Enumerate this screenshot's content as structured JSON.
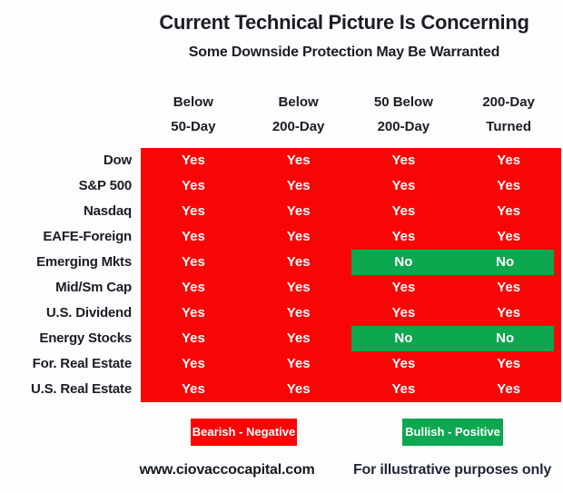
{
  "title": "Current Technical Picture Is Concerning",
  "subtitle": "Some Downside Protection May Be Warranted",
  "legend": {
    "bearish": "Bearish - Negative",
    "bullish": "Bullish - Positive"
  },
  "footer": {
    "website": "www.ciovaccocapital.com",
    "disclaimer": "For illustrative purposes only"
  },
  "colors": {
    "bearish_red": "#FA0505",
    "bullish_green": "#0DA750",
    "text_dark": "#1A1C26",
    "cell_text": "#FFFFFF"
  },
  "chart_data": {
    "type": "table",
    "title": "Current Technical Picture Is Concerning",
    "subtitle": "Some Downside Protection May Be Warranted",
    "columns": [
      "Below 50-Day",
      "Below 200-Day",
      "50 Below 200-Day",
      "200-Day Turned"
    ],
    "column_header_lines": [
      [
        "Below",
        "50-Day"
      ],
      [
        "Below",
        "200-Day"
      ],
      [
        "50 Below",
        "200-Day"
      ],
      [
        "200-Day",
        "Turned"
      ]
    ],
    "rows": [
      "Dow",
      "S&P 500",
      "Nasdaq",
      "EAFE-Foreign",
      "Emerging Mkts",
      "Mid/Sm Cap",
      "U.S. Dividend",
      "Energy Stocks",
      "For. Real Estate",
      "U.S. Real Estate"
    ],
    "values": [
      [
        "Yes",
        "Yes",
        "Yes",
        "Yes"
      ],
      [
        "Yes",
        "Yes",
        "Yes",
        "Yes"
      ],
      [
        "Yes",
        "Yes",
        "Yes",
        "Yes"
      ],
      [
        "Yes",
        "Yes",
        "Yes",
        "Yes"
      ],
      [
        "Yes",
        "Yes",
        "No",
        "No"
      ],
      [
        "Yes",
        "Yes",
        "Yes",
        "Yes"
      ],
      [
        "Yes",
        "Yes",
        "Yes",
        "Yes"
      ],
      [
        "Yes",
        "Yes",
        "No",
        "No"
      ],
      [
        "Yes",
        "Yes",
        "Yes",
        "Yes"
      ],
      [
        "Yes",
        "Yes",
        "Yes",
        "Yes"
      ]
    ],
    "value_meaning": {
      "Yes": "Bearish - Negative",
      "No": "Bullish - Positive"
    },
    "legend": [
      {
        "label": "Bearish - Negative",
        "color": "#FA0505"
      },
      {
        "label": "Bullish - Positive",
        "color": "#0DA750"
      }
    ],
    "layout_hints": {
      "grid": false,
      "legend_position": "bottom",
      "label_column": "left"
    }
  }
}
